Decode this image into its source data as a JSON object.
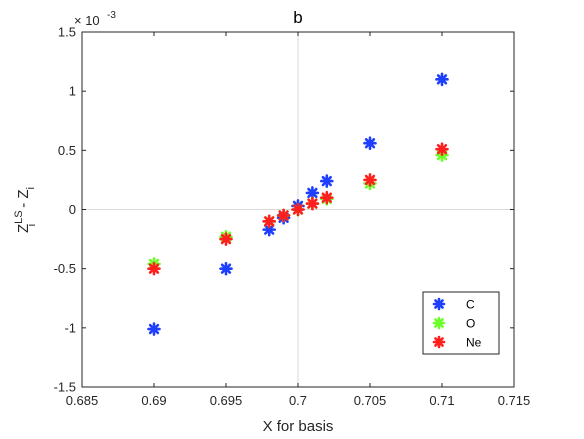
{
  "chart_data": {
    "type": "scatter",
    "title": "b",
    "xlabel": "X for basis",
    "ylabel_main": "Z",
    "ylabel_sup": "LS",
    "ylabel_sub": "i",
    "ylabel_rest": " - Z",
    "ylabel_sub2": "i",
    "exponent_label": "× 10",
    "exponent_power": "-3",
    "xlim": [
      0.685,
      0.715
    ],
    "ylim": [
      -1.5,
      1.5
    ],
    "x_ticks": [
      "0.685",
      "0.69",
      "0.695",
      "0.7",
      "0.705",
      "0.71",
      "0.715"
    ],
    "y_ticks": [
      "1.5",
      "1",
      "0.5",
      "0",
      "-0.5",
      "-1",
      "-1.5"
    ],
    "x_tick_values": [
      0.685,
      0.69,
      0.695,
      0.7,
      0.705,
      0.71,
      0.715
    ],
    "y_tick_values": [
      1.5,
      1,
      0.5,
      0,
      -0.5,
      -1,
      -1.5
    ],
    "reference_lines": {
      "x": 0.7,
      "y": 0
    },
    "legend_position": "bottom-right",
    "series": [
      {
        "name": "C",
        "color": "#1f3fff",
        "points": [
          [
            0.69,
            -1.01
          ],
          [
            0.695,
            -0.5
          ],
          [
            0.698,
            -0.17
          ],
          [
            0.699,
            -0.07
          ],
          [
            0.7,
            0.03
          ],
          [
            0.701,
            0.14
          ],
          [
            0.702,
            0.24
          ],
          [
            0.705,
            0.56
          ],
          [
            0.71,
            1.1
          ]
        ]
      },
      {
        "name": "O",
        "color": "#6cff2a",
        "points": [
          [
            0.69,
            -0.46
          ],
          [
            0.695,
            -0.23
          ],
          [
            0.698,
            -0.1
          ],
          [
            0.699,
            -0.05
          ],
          [
            0.7,
            0.0
          ],
          [
            0.701,
            0.05
          ],
          [
            0.702,
            0.09
          ],
          [
            0.705,
            0.22
          ],
          [
            0.71,
            0.46
          ]
        ]
      },
      {
        "name": "Ne",
        "color": "#ff1f1f",
        "points": [
          [
            0.69,
            -0.5
          ],
          [
            0.695,
            -0.25
          ],
          [
            0.698,
            -0.1
          ],
          [
            0.699,
            -0.05
          ],
          [
            0.7,
            0.0
          ],
          [
            0.701,
            0.05
          ],
          [
            0.702,
            0.1
          ],
          [
            0.705,
            0.25
          ],
          [
            0.71,
            0.51
          ]
        ]
      }
    ]
  }
}
